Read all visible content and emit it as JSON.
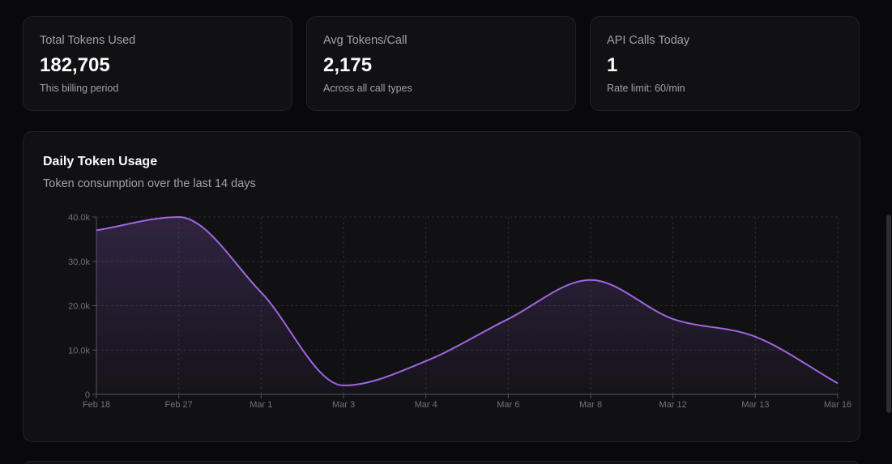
{
  "stats": [
    {
      "title": "Total Tokens Used",
      "value": "182,705",
      "subtitle": "This billing period"
    },
    {
      "title": "Avg Tokens/Call",
      "value": "2,175",
      "subtitle": "Across all call types"
    },
    {
      "title": "API Calls Today",
      "value": "1",
      "subtitle": "Rate limit: 60/min"
    }
  ],
  "chart": {
    "title": "Daily Token Usage",
    "subtitle": "Token consumption over the last 14 days"
  },
  "colors": {
    "line": "#a066e0",
    "background": "#09090b",
    "card": "#111114"
  },
  "chart_data": {
    "type": "area",
    "title": "Daily Token Usage",
    "subtitle": "Token consumption over the last 14 days",
    "categories": [
      "Feb 18",
      "Feb 27",
      "Mar 1",
      "Mar 3",
      "Mar 4",
      "Mar 6",
      "Mar 8",
      "Mar 12",
      "Mar 13",
      "Mar 16"
    ],
    "values": [
      37000,
      40000,
      23000,
      2000,
      7500,
      17000,
      25800,
      17000,
      13000,
      2500
    ],
    "y_ticks": [
      0,
      10000,
      20000,
      30000,
      40000
    ],
    "y_tick_labels": [
      "0",
      "10.0k",
      "20.0k",
      "30.0k",
      "40.0k"
    ],
    "ylim": [
      0,
      40000
    ],
    "grid": true,
    "xlabel": "",
    "ylabel": ""
  }
}
